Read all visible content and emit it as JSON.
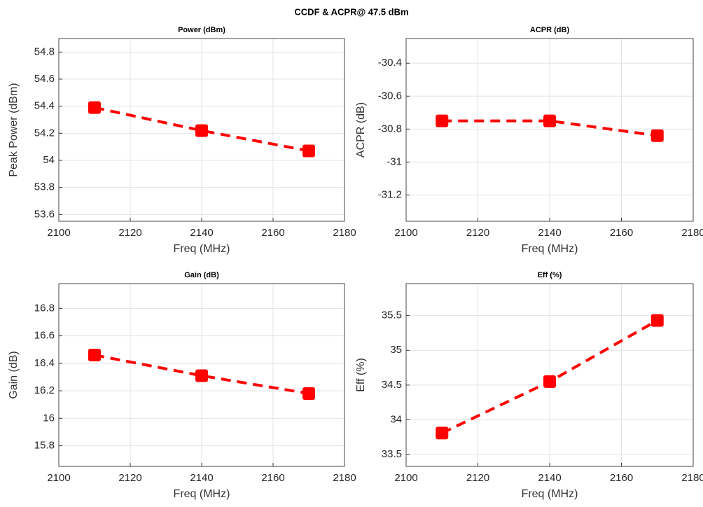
{
  "title": "CCDF & ACPR@ 47.5 dBm",
  "chart_data": [
    {
      "type": "line",
      "title": "Power (dBm)",
      "xlabel": "Freq (MHz)",
      "ylabel": "Peak Power (dBm)",
      "x": [
        2110,
        2140,
        2170
      ],
      "values": [
        54.39,
        54.22,
        54.07
      ],
      "color": "#ff0000",
      "grid": true,
      "xlim": [
        2100,
        2180
      ],
      "xticks": [
        2100,
        2120,
        2140,
        2160,
        2180
      ],
      "ylim": [
        53.55,
        54.9
      ],
      "yticks": [
        53.6,
        53.8,
        54,
        54.2,
        54.4,
        54.6,
        54.8
      ]
    },
    {
      "type": "line",
      "title": "ACPR (dB)",
      "xlabel": "Freq (MHz)",
      "ylabel": "ACPR (dB)",
      "x": [
        2110,
        2140,
        2170
      ],
      "values": [
        -30.75,
        -30.75,
        -30.84
      ],
      "color": "#ff0000",
      "grid": true,
      "xlim": [
        2100,
        2180
      ],
      "xticks": [
        2100,
        2120,
        2140,
        2160,
        2180
      ],
      "ylim": [
        -31.36,
        -30.25
      ],
      "yticks": [
        -31.2,
        -31,
        -30.8,
        -30.6,
        -30.4
      ]
    },
    {
      "type": "line",
      "title": "Gain (dB)",
      "xlabel": "Freq (MHz)",
      "ylabel": "Gain (dB)",
      "x": [
        2110,
        2140,
        2170
      ],
      "values": [
        16.46,
        16.31,
        16.18
      ],
      "color": "#ff0000",
      "grid": true,
      "xlim": [
        2100,
        2180
      ],
      "xticks": [
        2100,
        2120,
        2140,
        2160,
        2180
      ],
      "ylim": [
        15.65,
        16.98
      ],
      "yticks": [
        15.8,
        16,
        16.2,
        16.4,
        16.6,
        16.8
      ]
    },
    {
      "type": "line",
      "title": "Eff (%)",
      "xlabel": "Freq (MHz)",
      "ylabel": "Eff (%)",
      "x": [
        2110,
        2140,
        2170
      ],
      "values": [
        33.81,
        34.55,
        35.43
      ],
      "color": "#ff0000",
      "grid": true,
      "xlim": [
        2100,
        2180
      ],
      "xticks": [
        2100,
        2120,
        2140,
        2160,
        2180
      ],
      "ylim": [
        33.33,
        35.96
      ],
      "yticks": [
        33.5,
        34,
        34.5,
        35,
        35.5
      ]
    }
  ]
}
